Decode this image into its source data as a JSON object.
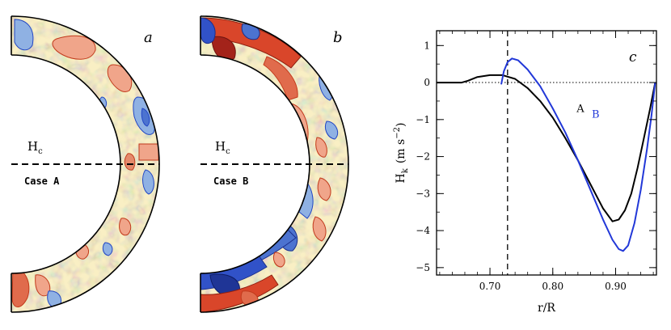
{
  "panels": [
    {
      "letter": "a",
      "symbol": "H",
      "subscript": "c",
      "case_label": "Case A"
    },
    {
      "letter": "b",
      "symbol": "H",
      "subscript": "c",
      "case_label": "Case B"
    }
  ],
  "colors": {
    "background_fill": "#f9efc4",
    "red_dark": "#c23a1c",
    "red_light": "#f0a58a",
    "blue_dark": "#2246c4",
    "blue_light": "#8fb1e3",
    "series_A": "#000000",
    "series_B": "#2238d8"
  },
  "chart_data": {
    "type": "line",
    "letter": "c",
    "xlabel": "r/R",
    "ylabel_symbol": "H",
    "ylabel_subscript": "k",
    "ylabel_units": "(m s",
    "ylabel_exponent": "−2",
    "ylabel_close": ")",
    "xlim": [
      0.615,
      0.965
    ],
    "ylim": [
      -5.2,
      1.4
    ],
    "xticks": [
      0.7,
      0.8,
      0.9
    ],
    "xtick_labels": [
      "0.70",
      "0.80",
      "0.90"
    ],
    "yticks": [
      1,
      0,
      -1,
      -2,
      -3,
      -4,
      -5
    ],
    "ytick_labels": [
      "1",
      "0",
      "−1",
      "−2",
      "−3",
      "−4",
      "−5"
    ],
    "reference_line_y": 0,
    "reference_line_x": 0.728,
    "series": [
      {
        "name": "A",
        "x": [
          0.615,
          0.655,
          0.665,
          0.68,
          0.7,
          0.72,
          0.74,
          0.76,
          0.78,
          0.8,
          0.82,
          0.84,
          0.86,
          0.88,
          0.895,
          0.905,
          0.915,
          0.925,
          0.935,
          0.945,
          0.955,
          0.963
        ],
        "y": [
          0.0,
          0.0,
          0.05,
          0.15,
          0.2,
          0.2,
          0.1,
          -0.15,
          -0.5,
          -0.95,
          -1.5,
          -2.1,
          -2.75,
          -3.4,
          -3.75,
          -3.7,
          -3.45,
          -3.0,
          -2.3,
          -1.5,
          -0.7,
          0.0
        ]
      },
      {
        "name": "B",
        "x": [
          0.718,
          0.722,
          0.728,
          0.735,
          0.745,
          0.76,
          0.78,
          0.8,
          0.82,
          0.84,
          0.86,
          0.88,
          0.895,
          0.905,
          0.912,
          0.92,
          0.93,
          0.94,
          0.95,
          0.957,
          0.963
        ],
        "y": [
          -0.05,
          0.3,
          0.55,
          0.65,
          0.6,
          0.35,
          -0.1,
          -0.7,
          -1.35,
          -2.1,
          -2.9,
          -3.7,
          -4.25,
          -4.5,
          -4.55,
          -4.4,
          -3.8,
          -2.9,
          -1.8,
          -0.9,
          0.0
        ]
      }
    ]
  }
}
